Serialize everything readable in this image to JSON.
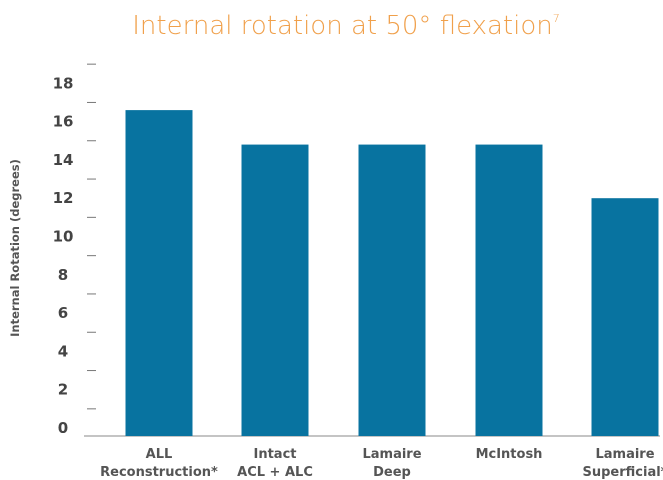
{
  "chart_data": {
    "type": "bar",
    "title": "Internal rotation at 50° flexation",
    "title_superscript": "7",
    "xlabel": "",
    "ylabel": "Internal Rotation (degrees)",
    "categories": [
      [
        "ALL",
        "Reconstruction*"
      ],
      [
        "Intact",
        "ACL + ALC"
      ],
      [
        "Lamaire",
        "Deep"
      ],
      [
        "McIntosh"
      ],
      [
        "Lamaire",
        "Superficial*"
      ]
    ],
    "values": [
      16.6,
      14.8,
      14.8,
      14.8,
      12.0
    ],
    "ylim": [
      0,
      20
    ],
    "yticks": [
      0,
      2,
      4,
      6,
      8,
      10,
      12,
      14,
      16,
      18
    ],
    "grid": false,
    "bar_color": "#0873A0",
    "title_color": "#F0A04B"
  }
}
